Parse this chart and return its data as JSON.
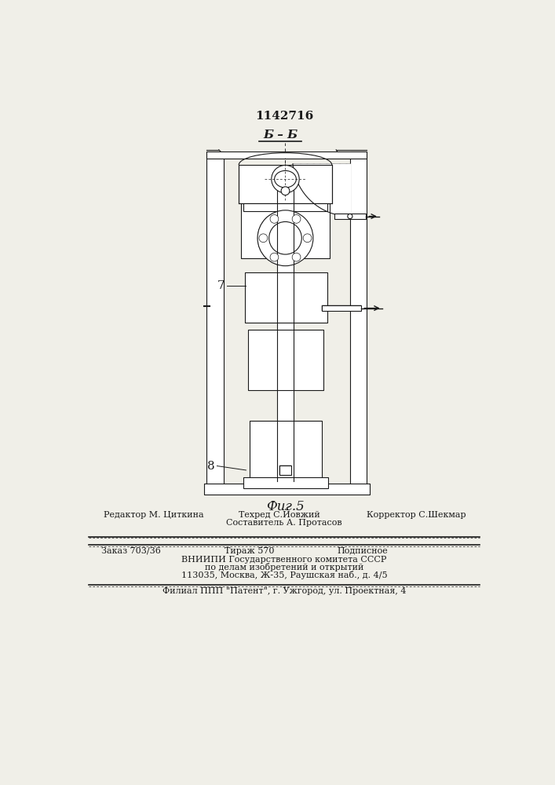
{
  "patent_number": "1142716",
  "section_label": "Б – Б",
  "fig_label": "Фиг.5",
  "label_7": "7",
  "label_8": "8",
  "footer_line0_center": "Составитель А. Протасов",
  "footer_line1_left": "Редактор М. Циткина",
  "footer_line1_center": "Техред С.Йовжий",
  "footer_line1_right": "Корректор С.Шекмар",
  "footer_line2_left": "Заказ 703/36",
  "footer_line2_center": "Тираж 570",
  "footer_line2_right": "Подписное",
  "footer_line3": "ВНИИПИ Государственного комитета СССР",
  "footer_line4": "по делам изобретений и открытий",
  "footer_line5": "113035, Москва, Ж-35, Раушская наб., д. 4/5",
  "footer_line6": "Филиал ППП \"Патент\", г. Ужгород, ул. Проектная, 4",
  "bg_color": "#f0efe8",
  "line_color": "#1a1a1a"
}
